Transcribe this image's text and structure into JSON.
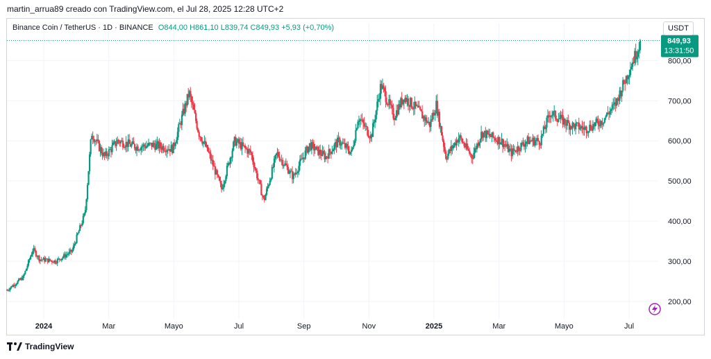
{
  "header": {
    "caption": "martin_arrua89 creado con TradingView.com, el Jul 28, 2025 12:28 UTC+2",
    "symbol": "Binance Coin / TetherUS · 1D · BINANCE",
    "ohlc": "O844,00 H861,10 L839,74 C849,93 +5,93 (+0,70%)",
    "currency": "USDT"
  },
  "footer": {
    "brand": "TradingView"
  },
  "chart_data": {
    "type": "candlestick",
    "y_tick_labels": [
      "800,00",
      "700,00",
      "600,00",
      "500,00",
      "400,00",
      "300,00",
      "200,00"
    ],
    "y_ticks": [
      800,
      700,
      600,
      500,
      400,
      300,
      200
    ],
    "ylim": [
      160,
      875
    ],
    "x_labels": [
      {
        "label": "2024",
        "month_index": 0,
        "bold": true
      },
      {
        "label": "Mar",
        "month_index": 2,
        "bold": false
      },
      {
        "label": "Mayo",
        "month_index": 4,
        "bold": false
      },
      {
        "label": "Jul",
        "month_index": 6,
        "bold": false
      },
      {
        "label": "Sep",
        "month_index": 8,
        "bold": false
      },
      {
        "label": "Nov",
        "month_index": 10,
        "bold": false
      },
      {
        "label": "2025",
        "month_index": 12,
        "bold": true
      },
      {
        "label": "Mar",
        "month_index": 14,
        "bold": false
      },
      {
        "label": "Mayo",
        "month_index": 16,
        "bold": false
      },
      {
        "label": "Jul",
        "month_index": 18,
        "bold": false
      }
    ],
    "last_price": 849.93,
    "last_price_label": "849,93",
    "countdown": "13:31:50",
    "up_color": "#089981",
    "down_color": "#f23645",
    "path": [
      [
        0,
        228
      ],
      [
        0.5,
        260
      ],
      [
        0.8,
        330
      ],
      [
        1.0,
        305
      ],
      [
        1.5,
        300
      ],
      [
        2.0,
        325
      ],
      [
        2.4,
        420
      ],
      [
        2.6,
        620
      ],
      [
        3.0,
        560
      ],
      [
        3.4,
        600
      ],
      [
        4.0,
        585
      ],
      [
        4.5,
        590
      ],
      [
        5.1,
        580
      ],
      [
        5.6,
        720
      ],
      [
        5.9,
        620
      ],
      [
        6.2,
        570
      ],
      [
        6.6,
        480
      ],
      [
        7.0,
        600
      ],
      [
        7.5,
        570
      ],
      [
        7.9,
        450
      ],
      [
        8.3,
        570
      ],
      [
        8.8,
        510
      ],
      [
        9.3,
        590
      ],
      [
        9.8,
        560
      ],
      [
        10.2,
        600
      ],
      [
        10.6,
        570
      ],
      [
        10.8,
        660
      ],
      [
        11.2,
        610
      ],
      [
        11.5,
        740
      ],
      [
        11.9,
        660
      ],
      [
        12.2,
        710
      ],
      [
        12.6,
        680
      ],
      [
        13.0,
        640
      ],
      [
        13.2,
        690
      ],
      [
        13.5,
        560
      ],
      [
        13.9,
        610
      ],
      [
        14.3,
        560
      ],
      [
        14.6,
        620
      ],
      [
        15.2,
        600
      ],
      [
        15.5,
        570
      ],
      [
        16.0,
        600
      ],
      [
        16.4,
        600
      ],
      [
        16.7,
        670
      ],
      [
        17.3,
        640
      ],
      [
        17.8,
        630
      ],
      [
        18.3,
        650
      ],
      [
        18.7,
        690
      ],
      [
        19.2,
        790
      ],
      [
        19.5,
        849.93
      ]
    ]
  }
}
